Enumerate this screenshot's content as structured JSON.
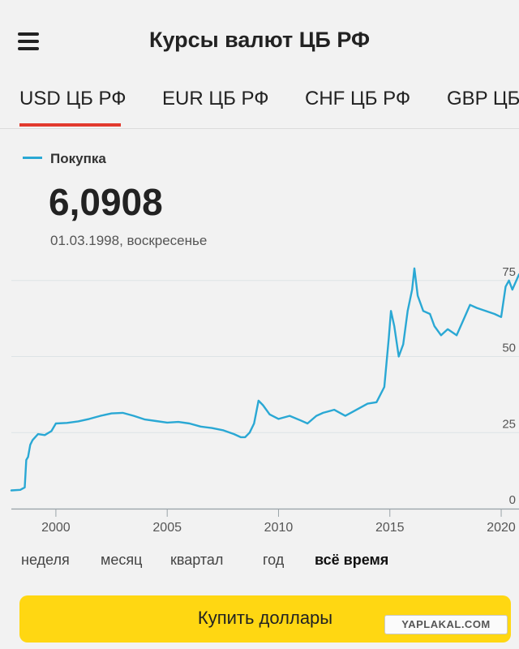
{
  "header": {
    "title": "Курсы валют ЦБ РФ"
  },
  "tabs": [
    {
      "label": "USD ЦБ РФ",
      "active": true
    },
    {
      "label": "EUR ЦБ РФ",
      "active": false
    },
    {
      "label": "CHF ЦБ РФ",
      "active": false
    },
    {
      "label": "GBP ЦБ",
      "active": false
    }
  ],
  "legend": {
    "label": "Покупка",
    "color": "#2aa8d4"
  },
  "current": {
    "value": "6,0908",
    "date": "01.03.1998, воскресенье"
  },
  "periods": [
    {
      "label": "неделя",
      "active": false
    },
    {
      "label": "месяц",
      "active": false
    },
    {
      "label": "квартал",
      "active": false
    },
    {
      "label": "год",
      "active": false
    },
    {
      "label": "всё время",
      "active": true
    }
  ],
  "buy_button": {
    "label": "Купить доллары",
    "color": "#ffd712"
  },
  "watermark": "YAPLAKAL.COM",
  "accent_color": "#e23a2e",
  "chart_data": {
    "type": "line",
    "title": "",
    "xlabel": "",
    "ylabel": "",
    "x_ticks": [
      "2000",
      "2005",
      "2010",
      "2015",
      "2020"
    ],
    "y_ticks": [
      "0",
      "25",
      "50",
      "75"
    ],
    "xlim": [
      1998.0,
      2020.8
    ],
    "ylim": [
      0,
      80
    ],
    "grid": true,
    "series": [
      {
        "name": "Покупка",
        "color": "#2aa8d4",
        "points": [
          [
            1998.0,
            6.0
          ],
          [
            1998.4,
            6.2
          ],
          [
            1998.6,
            7.0
          ],
          [
            1998.67,
            16.0
          ],
          [
            1998.75,
            17.0
          ],
          [
            1998.85,
            21.0
          ],
          [
            1998.95,
            22.5
          ],
          [
            1999.2,
            24.5
          ],
          [
            1999.5,
            24.2
          ],
          [
            1999.8,
            25.5
          ],
          [
            2000.0,
            28.0
          ],
          [
            2000.5,
            28.2
          ],
          [
            2001.0,
            28.7
          ],
          [
            2001.5,
            29.5
          ],
          [
            2002.0,
            30.5
          ],
          [
            2002.5,
            31.3
          ],
          [
            2003.0,
            31.5
          ],
          [
            2003.5,
            30.5
          ],
          [
            2004.0,
            29.3
          ],
          [
            2004.5,
            28.8
          ],
          [
            2005.0,
            28.3
          ],
          [
            2005.5,
            28.5
          ],
          [
            2006.0,
            28.0
          ],
          [
            2006.5,
            27.0
          ],
          [
            2007.0,
            26.5
          ],
          [
            2007.5,
            25.8
          ],
          [
            2008.0,
            24.5
          ],
          [
            2008.3,
            23.5
          ],
          [
            2008.5,
            23.5
          ],
          [
            2008.7,
            25.0
          ],
          [
            2008.9,
            28.0
          ],
          [
            2009.1,
            35.5
          ],
          [
            2009.3,
            34.0
          ],
          [
            2009.6,
            31.0
          ],
          [
            2010.0,
            29.5
          ],
          [
            2010.5,
            30.5
          ],
          [
            2011.0,
            29.0
          ],
          [
            2011.3,
            28.0
          ],
          [
            2011.7,
            30.5
          ],
          [
            2012.0,
            31.5
          ],
          [
            2012.5,
            32.5
          ],
          [
            2013.0,
            30.5
          ],
          [
            2013.5,
            32.5
          ],
          [
            2014.0,
            34.5
          ],
          [
            2014.4,
            35.0
          ],
          [
            2014.75,
            40.0
          ],
          [
            2014.95,
            56.0
          ],
          [
            2015.05,
            65.0
          ],
          [
            2015.2,
            60.0
          ],
          [
            2015.4,
            50.0
          ],
          [
            2015.6,
            54.0
          ],
          [
            2015.8,
            65.0
          ],
          [
            2016.0,
            72.0
          ],
          [
            2016.1,
            79.0
          ],
          [
            2016.25,
            70.0
          ],
          [
            2016.5,
            65.0
          ],
          [
            2016.8,
            64.0
          ],
          [
            2017.0,
            60.0
          ],
          [
            2017.3,
            57.0
          ],
          [
            2017.6,
            59.0
          ],
          [
            2018.0,
            57.0
          ],
          [
            2018.3,
            62.0
          ],
          [
            2018.6,
            67.0
          ],
          [
            2018.9,
            66.0
          ],
          [
            2019.3,
            65.0
          ],
          [
            2019.7,
            64.0
          ],
          [
            2020.0,
            63.0
          ],
          [
            2020.2,
            73.0
          ],
          [
            2020.35,
            75.0
          ],
          [
            2020.5,
            72.0
          ],
          [
            2020.8,
            77.0
          ]
        ]
      }
    ]
  }
}
